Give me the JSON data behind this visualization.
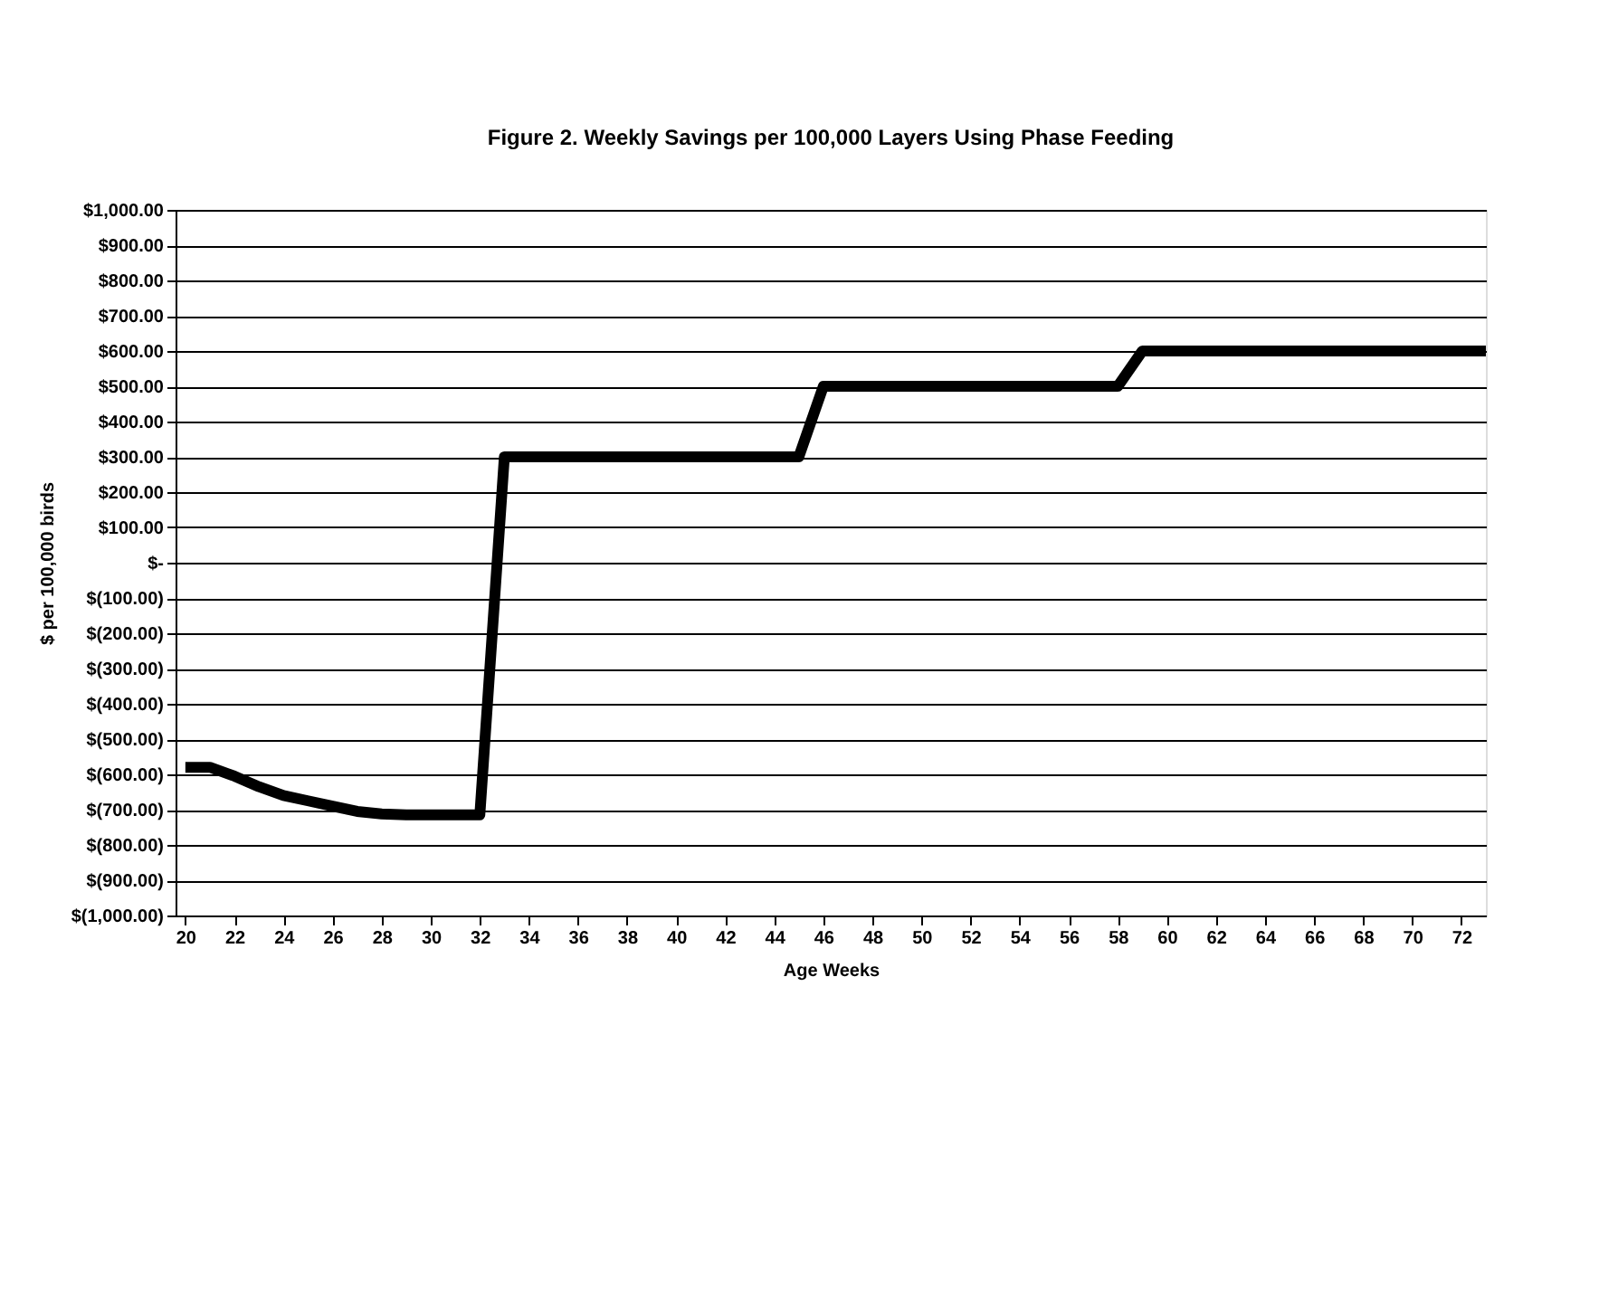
{
  "chart_data": {
    "type": "line",
    "title": "Figure 2. Weekly Savings per 100,000 Layers Using Phase Feeding",
    "xlabel": "Age Weeks",
    "ylabel": "$ per 100,000 birds",
    "series": [
      {
        "color": "#000000",
        "x": [
          20,
          21,
          22,
          23,
          24,
          25,
          26,
          27,
          28,
          29,
          32,
          33,
          45,
          46,
          58,
          59,
          73
        ],
        "values": [
          -580,
          -580,
          -605,
          -635,
          -660,
          -675,
          -690,
          -705,
          -712,
          -715,
          -715,
          300,
          300,
          500,
          500,
          600,
          600
        ]
      }
    ],
    "xlim": [
      19.6,
      73
    ],
    "xticks": [
      20,
      22,
      24,
      26,
      28,
      30,
      32,
      34,
      36,
      38,
      40,
      42,
      44,
      46,
      48,
      50,
      52,
      54,
      56,
      58,
      60,
      62,
      64,
      66,
      68,
      70,
      72
    ],
    "ylim": [
      -1000,
      1000
    ],
    "yticks": [
      {
        "value": 1000,
        "label": "$1,000.00"
      },
      {
        "value": 900,
        "label": "$900.00"
      },
      {
        "value": 800,
        "label": "$800.00"
      },
      {
        "value": 700,
        "label": "$700.00"
      },
      {
        "value": 600,
        "label": "$600.00"
      },
      {
        "value": 500,
        "label": "$500.00"
      },
      {
        "value": 400,
        "label": "$400.00"
      },
      {
        "value": 300,
        "label": "$300.00"
      },
      {
        "value": 200,
        "label": "$200.00"
      },
      {
        "value": 100,
        "label": "$100.00"
      },
      {
        "value": 0,
        "label": "$-"
      },
      {
        "value": -100,
        "label": "$(100.00)"
      },
      {
        "value": -200,
        "label": "$(200.00)"
      },
      {
        "value": -300,
        "label": "$(300.00)"
      },
      {
        "value": -400,
        "label": "$(400.00)"
      },
      {
        "value": -500,
        "label": "$(500.00)"
      },
      {
        "value": -600,
        "label": "$(600.00)"
      },
      {
        "value": -700,
        "label": "$(700.00)"
      },
      {
        "value": -800,
        "label": "$(800.00)"
      },
      {
        "value": -900,
        "label": "$(900.00)"
      },
      {
        "value": -1000,
        "label": "$(1,000.00)"
      }
    ],
    "grid": "y",
    "marker": "none",
    "line_style": "solid"
  }
}
